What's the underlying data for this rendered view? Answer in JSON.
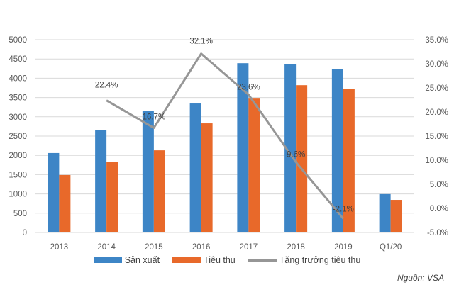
{
  "chart_data": {
    "type": "bar",
    "title": "",
    "xlabel": "",
    "ylabel": "",
    "categories": [
      "2013",
      "2014",
      "2015",
      "2016",
      "2017",
      "2018",
      "2019",
      "Q1/20"
    ],
    "series": [
      {
        "name": "Sản xuất",
        "type": "bar",
        "axis": "left",
        "color": "#3D85C6",
        "values": [
          2060,
          2665,
          3160,
          3345,
          4390,
          4375,
          4245,
          995
        ]
      },
      {
        "name": "Tiêu thụ",
        "type": "bar",
        "axis": "left",
        "color": "#E8692A",
        "values": [
          1490,
          1820,
          2130,
          2830,
          3490,
          3820,
          3730,
          845
        ]
      },
      {
        "name": "Tăng trưởng tiêu thụ",
        "type": "line",
        "axis": "right",
        "color": "#969696",
        "values": [
          null,
          22.4,
          16.7,
          32.1,
          23.6,
          9.6,
          -2.1,
          null
        ],
        "labels": [
          "",
          "22.4%",
          "16.7%",
          "32.1%",
          "23.6%",
          "9.6%",
          "-2.1%",
          ""
        ]
      }
    ],
    "ylim": [
      0,
      5000
    ],
    "yticks": [
      "0",
      "500",
      "1000",
      "1500",
      "2000",
      "2500",
      "3000",
      "3500",
      "4000",
      "4500",
      "5000"
    ],
    "y2lim": [
      -5,
      35
    ],
    "y2ticks": [
      "-5.0%",
      "0.0%",
      "5.0%",
      "10.0%",
      "15.0%",
      "20.0%",
      "25.0%",
      "30.0%",
      "35.0%"
    ],
    "grid": true,
    "legend_position": "bottom"
  },
  "legend": {
    "items": [
      {
        "label": "Sản xuất",
        "color": "#3D85C6",
        "kind": "bar"
      },
      {
        "label": "Tiêu thụ",
        "color": "#E8692A",
        "kind": "bar"
      },
      {
        "label": "Tăng trưởng tiêu thụ",
        "color": "#969696",
        "kind": "line"
      }
    ]
  },
  "source": "Nguồn: VSA"
}
